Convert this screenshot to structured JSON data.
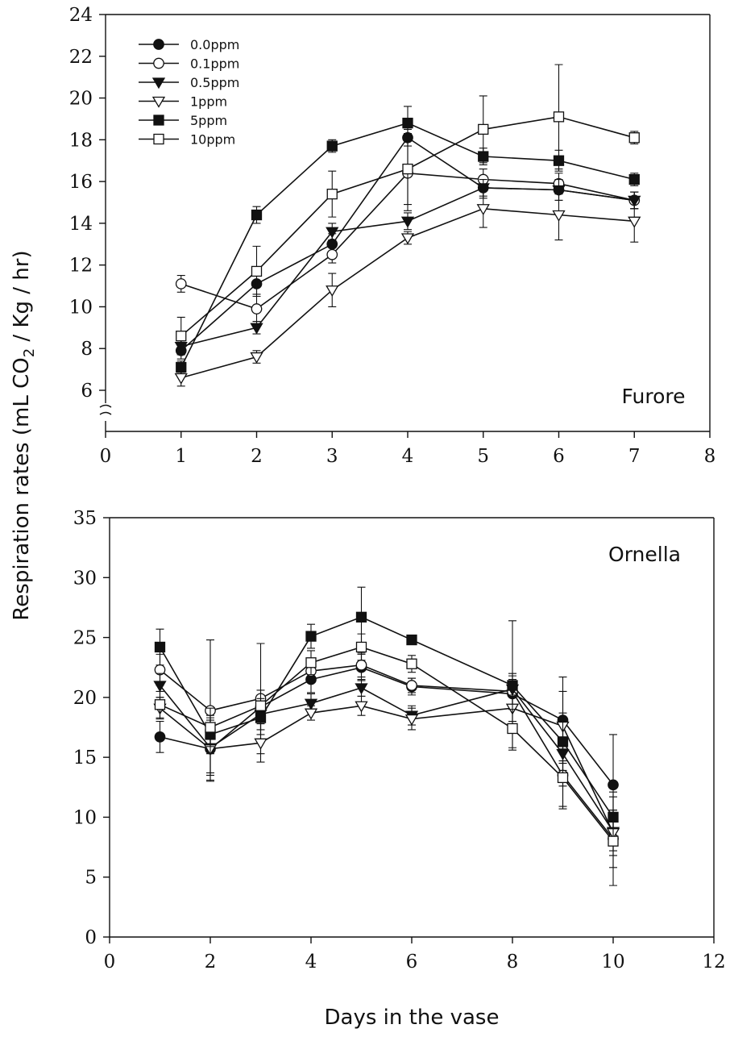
{
  "chart_data": [
    {
      "type": "line",
      "panel_label": "Furore",
      "xlabel": "",
      "ylabel": "",
      "xlim": [
        0,
        8
      ],
      "ylim": [
        4,
        24
      ],
      "y_axis_break": true,
      "x_ticks": [
        0,
        1,
        2,
        3,
        4,
        5,
        6,
        7,
        8
      ],
      "y_ticks": [
        6,
        8,
        10,
        12,
        14,
        16,
        18,
        20,
        22,
        24
      ],
      "grid": false,
      "legend_position": "top-left",
      "series": [
        {
          "name": "0.0ppm",
          "marker": "circle-filled",
          "x": [
            1,
            2,
            3,
            4,
            5,
            6,
            7
          ],
          "y": [
            7.9,
            11.1,
            13.0,
            18.1,
            15.7,
            15.6,
            15.1
          ],
          "err": [
            0.4,
            0.5,
            0.5,
            0.4,
            0.5,
            0.5,
            0.4
          ]
        },
        {
          "name": "0.1ppm",
          "marker": "circle-open",
          "x": [
            1,
            2,
            3,
            4,
            5,
            6,
            7
          ],
          "y": [
            11.1,
            9.9,
            12.5,
            16.4,
            16.1,
            15.9,
            15.1
          ],
          "err": [
            0.4,
            0.6,
            0.4,
            1.8,
            0.5,
            0.5,
            0.4
          ]
        },
        {
          "name": "0.5ppm",
          "marker": "triangle-down-filled",
          "x": [
            1,
            2,
            3,
            4,
            5,
            6,
            7
          ],
          "y": [
            8.1,
            9.0,
            13.6,
            14.1,
            15.7,
            15.6,
            15.1
          ],
          "err": [
            0.4,
            0.3,
            0.4,
            0.4,
            0.4,
            0.5,
            0.4
          ]
        },
        {
          "name": "1ppm",
          "marker": "triangle-down-open",
          "x": [
            1,
            2,
            3,
            4,
            5,
            6,
            7
          ],
          "y": [
            6.6,
            7.6,
            10.8,
            13.3,
            14.7,
            14.4,
            14.1
          ],
          "err": [
            0.4,
            0.3,
            0.8,
            0.3,
            0.9,
            1.2,
            1.0
          ]
        },
        {
          "name": "5ppm",
          "marker": "square-filled",
          "x": [
            1,
            2,
            3,
            4,
            5,
            6,
            7
          ],
          "y": [
            7.1,
            14.4,
            17.7,
            18.8,
            17.2,
            17.0,
            16.1
          ],
          "err": [
            0.3,
            0.4,
            0.3,
            0.8,
            0.4,
            0.5,
            0.3
          ]
        },
        {
          "name": "10ppm",
          "marker": "square-open",
          "x": [
            1,
            2,
            3,
            4,
            5,
            6,
            7
          ],
          "y": [
            8.6,
            11.7,
            15.4,
            16.6,
            18.5,
            19.1,
            18.1
          ],
          "err": [
            0.9,
            1.2,
            1.1,
            1.7,
            1.6,
            2.5,
            0.3
          ]
        }
      ]
    },
    {
      "type": "line",
      "panel_label": "Ornella",
      "xlabel": "Days in the vase",
      "ylabel": "",
      "xlim": [
        0,
        12
      ],
      "ylim": [
        0,
        35
      ],
      "x_ticks": [
        0,
        2,
        4,
        6,
        8,
        10,
        12
      ],
      "y_ticks": [
        0,
        5,
        10,
        15,
        20,
        25,
        30,
        35
      ],
      "grid": false,
      "series": [
        {
          "name": "0.0ppm",
          "marker": "circle-filled",
          "x": [
            1,
            2,
            3,
            4,
            5,
            6,
            8,
            9,
            10
          ],
          "y": [
            16.7,
            15.7,
            19.2,
            21.5,
            22.5,
            20.9,
            20.3,
            18.1,
            12.7
          ],
          "err": [
            1.3,
            2.6,
            1.0,
            1.1,
            1.1,
            0.7,
            1.2,
            3.6,
            4.2
          ]
        },
        {
          "name": "0.1ppm",
          "marker": "circle-open",
          "x": [
            1,
            2,
            3,
            4,
            5,
            6,
            8,
            9,
            10
          ],
          "y": [
            22.3,
            18.9,
            19.9,
            22.2,
            22.7,
            21.0,
            20.5,
            13.5,
            8.2
          ],
          "err": [
            1.3,
            5.9,
            4.6,
            0.8,
            1.0,
            0.6,
            1.3,
            2.8,
            2.4
          ]
        },
        {
          "name": "0.5ppm",
          "marker": "triangle-down-filled",
          "x": [
            1,
            2,
            3,
            4,
            5,
            6,
            8,
            9,
            10
          ],
          "y": [
            21.0,
            15.8,
            18.6,
            19.5,
            20.8,
            18.5,
            20.7,
            15.3,
            8.8
          ],
          "err": [
            1.0,
            2.3,
            1.3,
            0.8,
            0.7,
            0.8,
            1.3,
            2.7,
            1.6
          ]
        },
        {
          "name": "1ppm",
          "marker": "triangle-down-open",
          "x": [
            1,
            2,
            3,
            4,
            5,
            6,
            8,
            9,
            10
          ],
          "y": [
            19.1,
            15.7,
            16.2,
            18.7,
            19.3,
            18.2,
            19.1,
            17.6,
            8.7
          ],
          "err": [
            0.9,
            2.0,
            1.6,
            0.6,
            0.8,
            0.9,
            1.1,
            2.9,
            1.9
          ]
        },
        {
          "name": "5ppm",
          "marker": "square-filled",
          "x": [
            1,
            2,
            3,
            4,
            5,
            6,
            8,
            9,
            10
          ],
          "y": [
            24.2,
            16.9,
            18.3,
            25.1,
            26.7,
            24.8,
            21.0,
            16.3,
            10.0
          ],
          "err": [
            1.5,
            1.6,
            1.4,
            1.0,
            2.5,
            0.4,
            5.4,
            2.4,
            2.1
          ]
        },
        {
          "name": "10ppm",
          "marker": "square-open",
          "x": [
            1,
            2,
            3,
            4,
            5,
            6,
            8,
            9,
            10
          ],
          "y": [
            19.4,
            17.5,
            19.3,
            22.9,
            24.2,
            22.8,
            17.4,
            13.3,
            8.0
          ],
          "err": [
            1.1,
            1.6,
            1.3,
            1.0,
            1.1,
            0.7,
            1.6,
            2.4,
            3.7
          ]
        }
      ]
    }
  ],
  "shared": {
    "ylabel_main": "Respiration rates (mL CO",
    "ylabel_sub": "2",
    "ylabel_rest": " / Kg / hr)",
    "xlabel": "Days in the vase"
  }
}
